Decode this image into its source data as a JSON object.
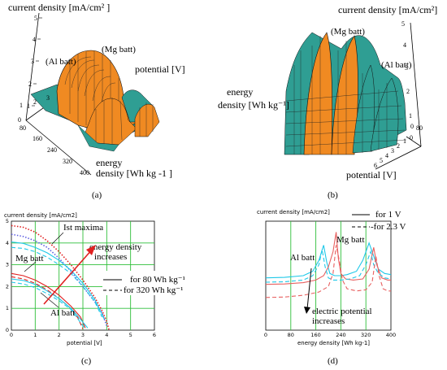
{
  "figure": {
    "panels": [
      {
        "id": "a",
        "caption": "(a)",
        "zlabel": "current density [mA/cm² ]",
        "ylabel": "potential [V]",
        "xlabel_line1": "energy",
        "xlabel_line2": "density [Wh kg -1 ]",
        "z_ticks": [
          "1",
          "2",
          "3",
          "4",
          "5"
        ],
        "z_zero": "0",
        "y_ticks": [
          "1",
          "2",
          "3"
        ],
        "x_ticks": [
          "80",
          "160",
          "240",
          "320",
          "400"
        ],
        "labels": {
          "al": "(Al batt)",
          "mg": "(Mg batt)"
        }
      },
      {
        "id": "b",
        "caption": "(b)",
        "zlabel": "current density [mA/cm²]",
        "ylabel": "potential [V]",
        "xlabel_line1": "energy",
        "xlabel_line2": "density [Wh kg⁻¹]",
        "z_ticks": [
          "1",
          "2",
          "3",
          "4",
          "5"
        ],
        "y_ticks": [
          "0",
          "1",
          "2",
          "3",
          "4",
          "5",
          "6"
        ],
        "x_ticks": [
          "0",
          "80"
        ],
        "labels": {
          "al": "(Al batt)",
          "mg": "(Mg batt)"
        }
      }
    ]
  },
  "chart_data": [
    {
      "type": "line",
      "panel": "c",
      "caption": "(c)",
      "title": "current density [mA/cm2]",
      "xlabel": "potential [V]",
      "ylabel": "",
      "xlim": [
        0,
        6
      ],
      "ylim": [
        0,
        5
      ],
      "x_ticks": [
        "0",
        "1",
        "2",
        "3",
        "4",
        "5",
        "6"
      ],
      "y_ticks": [
        "0",
        "1",
        "2",
        "3",
        "4",
        "5"
      ],
      "annotations": {
        "maxima": "Ist maxima",
        "trend_line1": "energy density",
        "trend_line2": "increases",
        "mg": "Mg batt",
        "al": "Al batt"
      },
      "legend": [
        {
          "label": "for  80 Wh kg⁻¹",
          "style": "solid"
        },
        {
          "label": "for 320 Wh kg⁻¹",
          "style": "dashed"
        }
      ],
      "series": [
        {
          "battery": "Mg",
          "style": "dotted",
          "color": "#e02020",
          "x": [
            0,
            0.5,
            1,
            1.5,
            2,
            2.5,
            3,
            3.5,
            3.8,
            4.0,
            4.1
          ],
          "y": [
            4.8,
            4.72,
            4.5,
            4.1,
            3.6,
            3.0,
            2.3,
            1.5,
            0.9,
            0.4,
            0
          ]
        },
        {
          "battery": "Mg",
          "style": "dotted",
          "color": "#6060e0",
          "x": [
            0,
            0.5,
            1,
            1.5,
            2,
            2.5,
            3,
            3.5,
            3.8,
            4.0
          ],
          "y": [
            4.4,
            4.3,
            4.1,
            3.8,
            3.3,
            2.7,
            2.0,
            1.3,
            0.8,
            0.2
          ]
        },
        {
          "battery": "Mg",
          "style": "dashed",
          "color": "#1ec8e8",
          "x": [
            0,
            0.5,
            1,
            1.5,
            2,
            2.5,
            3,
            3.5,
            3.8
          ],
          "y": [
            3.8,
            3.75,
            3.6,
            3.35,
            3.0,
            2.6,
            2.0,
            1.3,
            0.6
          ]
        },
        {
          "battery": "Mg",
          "style": "solid",
          "color": "#1ec8e8",
          "x": [
            0,
            0.5,
            1,
            1.5,
            2,
            2.5,
            3,
            3.5,
            3.9
          ],
          "y": [
            4.05,
            3.98,
            3.8,
            3.55,
            3.2,
            2.75,
            2.15,
            1.4,
            0.5
          ]
        },
        {
          "battery": "Al",
          "style": "solid",
          "color": "#e02020",
          "x": [
            0,
            0.5,
            1,
            1.5,
            2,
            2.5,
            2.9,
            3.1
          ],
          "y": [
            2.6,
            2.5,
            2.3,
            2.0,
            1.6,
            1.1,
            0.6,
            0.1
          ]
        },
        {
          "battery": "Al",
          "style": "dashed",
          "color": "#e02020",
          "x": [
            0,
            0.5,
            1,
            1.5,
            2,
            2.5,
            2.8,
            3.0
          ],
          "y": [
            2.45,
            2.35,
            2.15,
            1.85,
            1.45,
            1.0,
            0.55,
            0.05
          ]
        },
        {
          "battery": "Al",
          "style": "solid",
          "color": "#1ec8e8",
          "x": [
            0,
            0.5,
            1,
            1.5,
            2,
            2.5,
            2.9,
            3.2
          ],
          "y": [
            2.35,
            2.28,
            2.1,
            1.8,
            1.45,
            1.0,
            0.5,
            0.1
          ]
        },
        {
          "battery": "Al",
          "style": "dashed",
          "color": "#1ec8e8",
          "x": [
            0,
            0.5,
            1,
            1.5,
            2,
            2.5,
            2.8,
            3.1
          ],
          "y": [
            2.2,
            2.12,
            1.95,
            1.68,
            1.35,
            0.95,
            0.5,
            0.05
          ]
        }
      ]
    },
    {
      "type": "line",
      "panel": "d",
      "caption": "(d)",
      "title": "current density [mA/cm2]",
      "xlabel": "energy density [Wh kg-1]",
      "ylabel": "",
      "xlim": [
        0,
        400
      ],
      "ylim": [
        0,
        5
      ],
      "x_ticks": [
        "0",
        "80",
        "160",
        "240",
        "320",
        "400"
      ],
      "x_tick_values": [
        0,
        80,
        160,
        240,
        320,
        400
      ],
      "annotations": {
        "mg": "Mg batt",
        "al": "Al batt",
        "trend_line1": "electric potential",
        "trend_line2": "increases"
      },
      "legend": [
        {
          "label": "for 1 V",
          "style": "solid"
        },
        {
          "label": "-for 2.3 V",
          "style": "dashed"
        }
      ],
      "series": [
        {
          "potential": "1 V",
          "style": "solid",
          "color": "#1ec8e8",
          "x": [
            0,
            60,
            120,
            150,
            170,
            185,
            195,
            205,
            220,
            240,
            260,
            290,
            310,
            330,
            345,
            360,
            380,
            400
          ],
          "y": [
            2.4,
            2.42,
            2.5,
            2.7,
            3.2,
            3.9,
            3.1,
            2.6,
            2.5,
            2.5,
            2.55,
            2.7,
            3.2,
            4.0,
            3.4,
            2.8,
            2.6,
            2.55
          ]
        },
        {
          "potential": "1 V",
          "style": "solid",
          "color": "#e86060",
          "x": [
            0,
            60,
            120,
            160,
            185,
            200,
            215,
            225,
            232,
            240,
            255,
            280,
            310,
            330,
            345,
            355,
            370,
            390,
            400
          ],
          "y": [
            2.1,
            2.12,
            2.18,
            2.3,
            2.5,
            2.9,
            3.6,
            4.5,
            3.3,
            2.6,
            2.35,
            2.3,
            2.35,
            2.8,
            3.8,
            3.0,
            2.4,
            2.3,
            2.3
          ]
        },
        {
          "potential": "2.3 V",
          "style": "dashed",
          "color": "#1ec8e8",
          "x": [
            0,
            60,
            120,
            150,
            170,
            180,
            190,
            200,
            215,
            240,
            270,
            300,
            320,
            335,
            345,
            360,
            380,
            400
          ],
          "y": [
            2.2,
            2.22,
            2.3,
            2.5,
            3.0,
            3.7,
            2.9,
            2.4,
            2.3,
            2.3,
            2.35,
            2.5,
            3.0,
            3.6,
            3.0,
            2.6,
            2.4,
            2.35
          ]
        },
        {
          "potential": "2.3 V",
          "style": "dashed",
          "color": "#e86060",
          "x": [
            0,
            60,
            120,
            170,
            200,
            215,
            225,
            235,
            245,
            260,
            290,
            320,
            340,
            352,
            362,
            375,
            390,
            400
          ],
          "y": [
            1.5,
            1.52,
            1.6,
            1.75,
            2.0,
            2.6,
            3.9,
            3.2,
            2.3,
            1.9,
            1.8,
            1.85,
            2.2,
            3.4,
            2.5,
            1.9,
            1.8,
            1.8
          ]
        }
      ]
    }
  ]
}
